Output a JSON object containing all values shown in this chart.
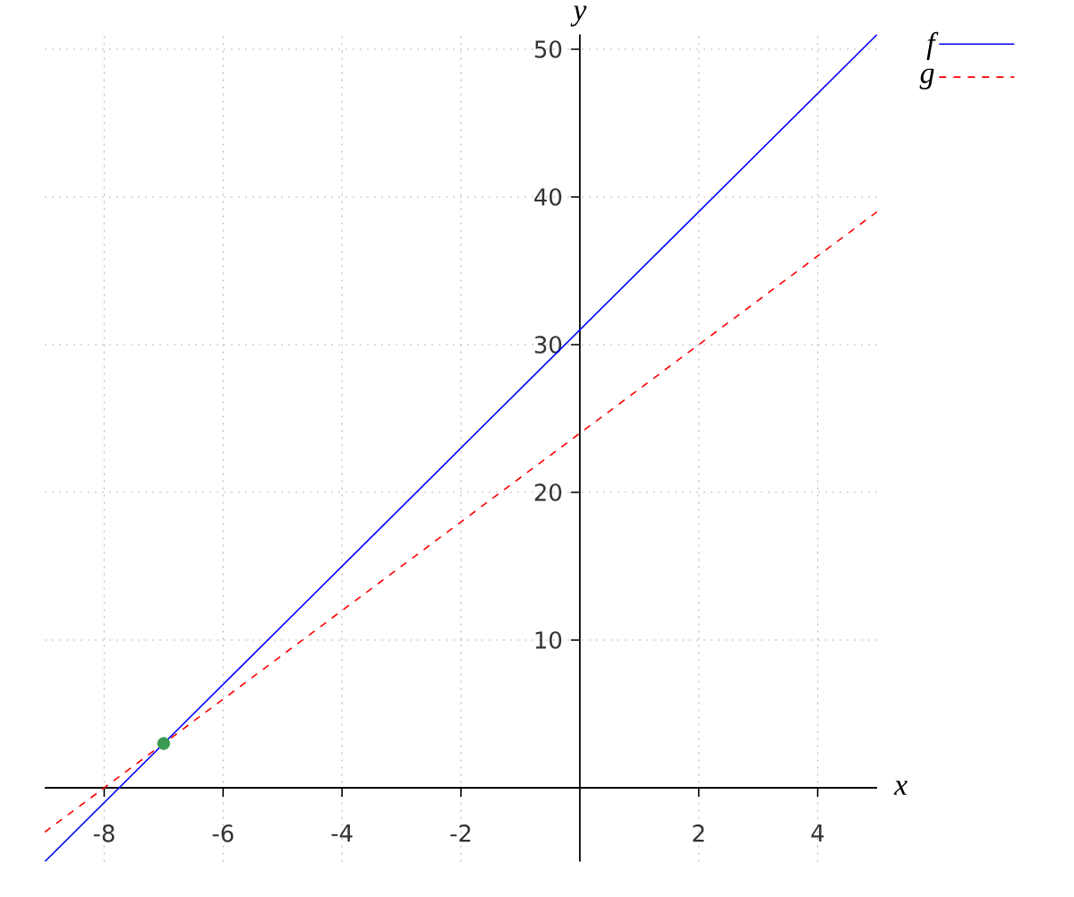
{
  "chart_data": {
    "type": "line",
    "xlabel": "x",
    "ylabel": "y",
    "xlim": [
      -9,
      5
    ],
    "ylim": [
      -5,
      51
    ],
    "xticks": [
      -8,
      -6,
      -4,
      -2,
      2,
      4
    ],
    "yticks": [
      10,
      20,
      30,
      40,
      50
    ],
    "grid": true,
    "legend": "top right",
    "series": [
      {
        "name": "f",
        "color": "#0000ff",
        "line_style": "solid",
        "x": [
          -9,
          -7,
          0,
          5
        ],
        "values": [
          -5,
          3,
          31,
          51
        ]
      },
      {
        "name": "g",
        "color": "#ff0000",
        "line_style": "dashed",
        "x": [
          -9,
          -7,
          0,
          5
        ],
        "values": [
          -3,
          3,
          24,
          39
        ]
      },
      {
        "type": "scatter",
        "color": "#3a9a50",
        "marker": "circle",
        "x": [
          -7
        ],
        "values": [
          3
        ]
      }
    ]
  }
}
